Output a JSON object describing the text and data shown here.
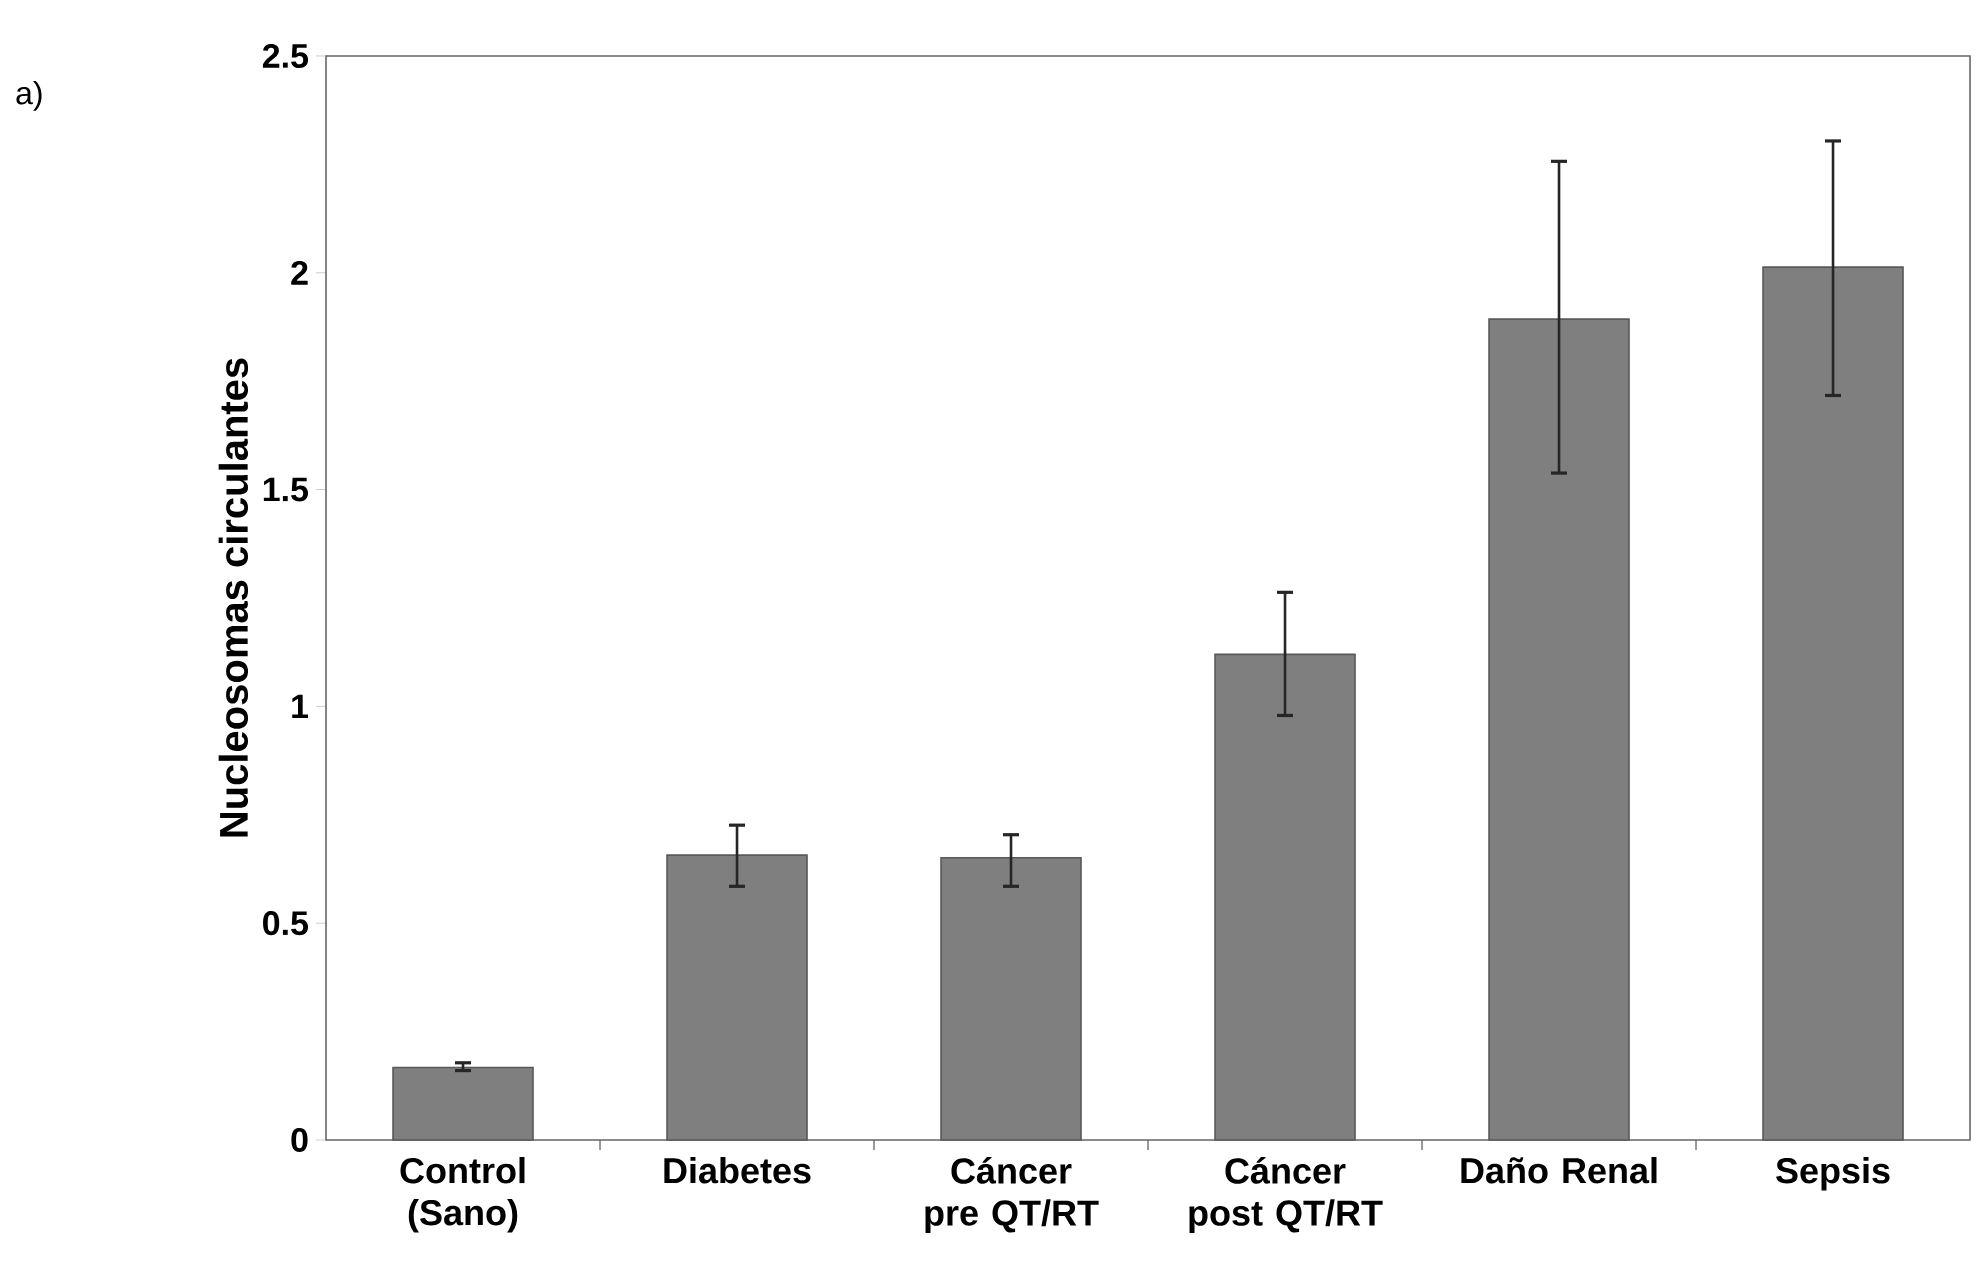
{
  "chart_data": {
    "type": "bar",
    "annotations": [
      "a)"
    ],
    "ylabel": "Nucleosomas circulantes",
    "categories": [
      "Control (Sano)",
      "Diabetes",
      "Cáncer pre QT/RT",
      "Cáncer post QT/RT",
      "Daño Renal",
      "Sepsis"
    ],
    "values": [
      0.167,
      0.657,
      0.651,
      1.12,
      1.893,
      2.013
    ],
    "errors": [
      [
        0.16,
        0.178
      ],
      [
        0.585,
        0.726
      ],
      [
        0.585,
        0.704
      ],
      [
        0.979,
        1.263
      ],
      [
        1.538,
        2.257
      ],
      [
        1.717,
        2.304
      ]
    ],
    "color": "#7f7f7f",
    "ylim": [
      0,
      2.5
    ],
    "yticks": [
      0,
      0.5,
      1,
      1.5,
      2,
      2.5
    ],
    "grid": false
  }
}
